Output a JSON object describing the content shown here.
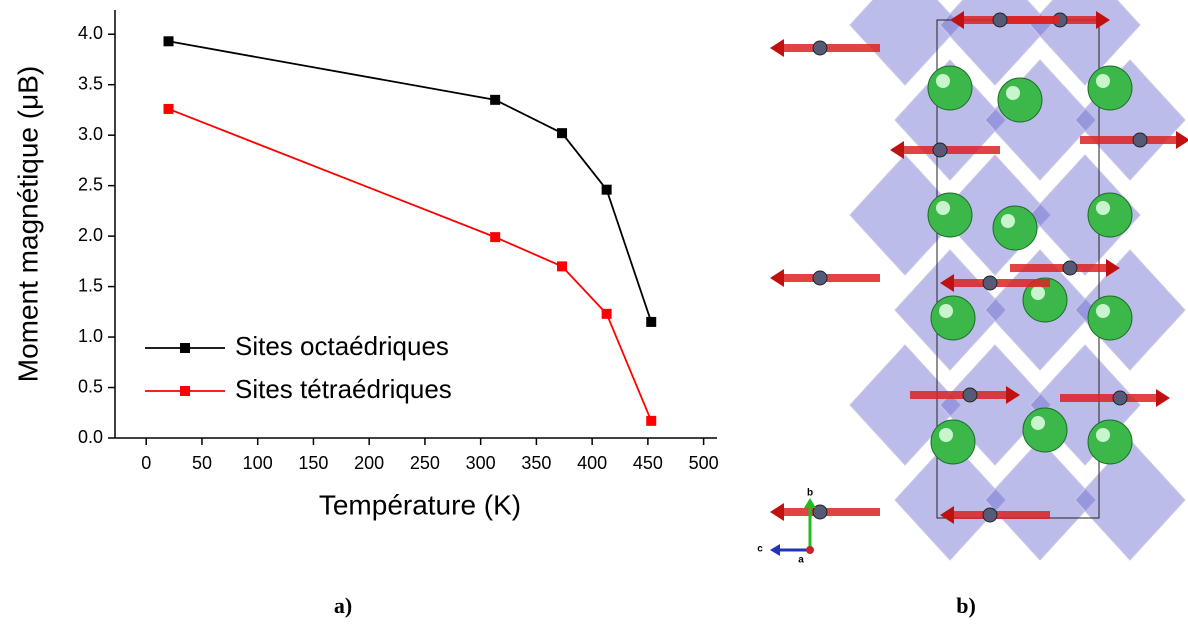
{
  "chart_data": {
    "type": "line",
    "x_label": "Température (K)",
    "y_label": "Moment magnétique (μB)",
    "x": [
      20,
      313,
      373,
      413,
      453
    ],
    "series": [
      {
        "name": "Sites octaédriques",
        "color": "#000000",
        "values": [
          3.93,
          3.35,
          3.02,
          2.46,
          1.15
        ]
      },
      {
        "name": "Sites tétraédriques",
        "color": "#ff0000",
        "values": [
          3.26,
          1.99,
          1.7,
          1.23,
          0.17
        ]
      }
    ],
    "xlim": [
      -28,
      512
    ],
    "xticks": [
      0,
      50,
      100,
      150,
      200,
      250,
      300,
      350,
      400,
      450,
      500
    ],
    "ylim": [
      0,
      4.24
    ],
    "yticks": [
      {
        "value": 0,
        "label": "0.0"
      },
      0.5,
      {
        "value": 1,
        "label": "1.0"
      },
      1.5,
      {
        "value": 2,
        "label": "2.0"
      },
      2.5,
      {
        "value": 3,
        "label": "3.0"
      },
      3.5,
      {
        "value": 4,
        "label": "4.0"
      }
    ],
    "grid": false,
    "legend": "lower left"
  },
  "panel_labels": [
    "a)",
    "b)"
  ],
  "structure_axes": [
    "b",
    "c",
    "a"
  ]
}
